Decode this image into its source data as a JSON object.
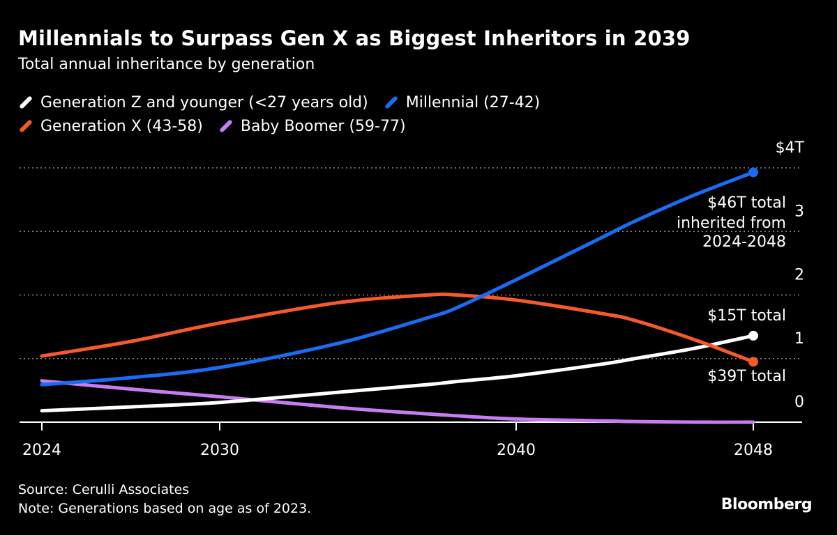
{
  "header": {
    "title": "Millennials to Surpass Gen X as Biggest Inheritors in 2039",
    "subtitle": "Total annual inheritance by generation"
  },
  "footer": {
    "source": "Source: Cerulli Associates",
    "note": "Note: Generations based on age as of 2023.",
    "brand": "Bloomberg"
  },
  "colors": {
    "background": "#000000",
    "genz": "#ffffff",
    "millennial": "#1a6cf5",
    "genx": "#f55a2c",
    "boomer": "#c77cf2"
  },
  "chart_data": {
    "type": "line",
    "title": "Millennials to Surpass Gen X as Biggest Inheritors in 2039",
    "subtitle": "Total annual inheritance by generation",
    "xlabel": "",
    "ylabel": "",
    "xlim": [
      2024,
      2048
    ],
    "ylim": [
      0,
      4
    ],
    "x_ticks": [
      "2024",
      "2030",
      "2040",
      "2048"
    ],
    "y_ticks": [
      "0",
      "1",
      "2",
      "3",
      "$4T"
    ],
    "grid": "horizontal dotted",
    "legend": "top",
    "x": [
      2024,
      2027,
      2030,
      2034,
      2037,
      2038,
      2040,
      2043,
      2044,
      2046,
      2048
    ],
    "series": [
      {
        "name": "Generation Z and younger (<27 years old)",
        "color": "#ffffff",
        "values": [
          0.18,
          0.24,
          0.31,
          0.47,
          0.59,
          0.64,
          0.73,
          0.92,
          1.0,
          1.16,
          1.36
        ],
        "endpoint": true
      },
      {
        "name": "Millennial (27-42)",
        "color": "#1a6cf5",
        "values": [
          0.59,
          0.7,
          0.86,
          1.24,
          1.64,
          1.8,
          2.24,
          2.93,
          3.16,
          3.57,
          3.93
        ],
        "endpoint": true
      },
      {
        "name": "Generation X (43-58)",
        "color": "#f55a2c",
        "values": [
          1.04,
          1.27,
          1.56,
          1.88,
          2.0,
          2.0,
          1.92,
          1.7,
          1.6,
          1.3,
          0.95
        ],
        "endpoint": true
      },
      {
        "name": "Baby Boomer (59-77)",
        "color": "#c77cf2",
        "values": [
          0.65,
          0.52,
          0.4,
          0.23,
          0.13,
          0.1,
          0.05,
          0.02,
          0.01,
          0.0,
          0.0
        ],
        "endpoint": false
      }
    ],
    "annotations": [
      {
        "series": "Millennial (27-42)",
        "lines": [
          "$46T total",
          "inherited from",
          "2024-2048"
        ]
      },
      {
        "series": "Generation Z and younger (<27 years old)",
        "lines": [
          "$15T total"
        ]
      },
      {
        "series": "Generation X (43-58)",
        "lines": [
          "$39T total"
        ]
      }
    ]
  }
}
